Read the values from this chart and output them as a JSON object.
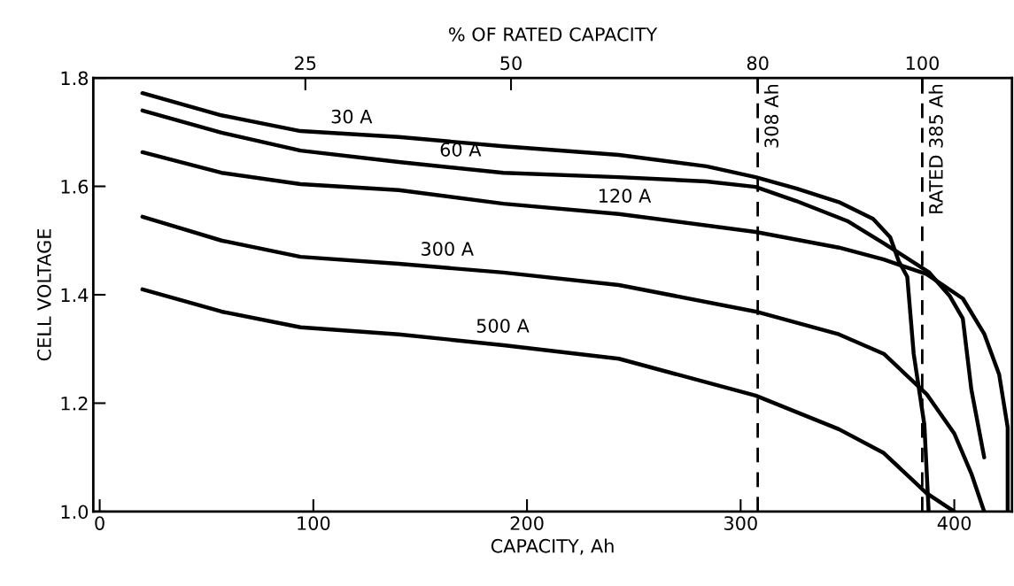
{
  "chart_data": {
    "type": "line",
    "xlabel": "CAPACITY, Ah",
    "ylabel": "CELL VOLTAGE",
    "x2label": "% OF RATED CAPACITY",
    "xlim": [
      -3,
      427
    ],
    "xticks": [
      0,
      100,
      200,
      300,
      400
    ],
    "ylim": [
      1.0,
      1.8
    ],
    "yticks": [
      {
        "value": 1.0,
        "label": "1.0"
      },
      1.2,
      1.4,
      1.6,
      1.8
    ],
    "x2lim": [
      -0.78,
      110.9
    ],
    "x2ticks": [
      25,
      50,
      80,
      100
    ],
    "grid": false,
    "legend": false,
    "marker": "none",
    "line_style": "solid",
    "series": [
      {
        "color": "#000000",
        "x": [
          20,
          57,
          94,
          140,
          189,
          243,
          284,
          307,
          326,
          346,
          362,
          370,
          374,
          378,
          381,
          386,
          388
        ],
        "values": [
          1.772,
          1.731,
          1.702,
          1.691,
          1.674,
          1.658,
          1.637,
          1.617,
          1.596,
          1.571,
          1.54,
          1.506,
          1.462,
          1.433,
          1.291,
          1.16,
          1.0
        ]
      },
      {
        "color": "#000000",
        "x": [
          20,
          57,
          94,
          140,
          189,
          243,
          284,
          307,
          326,
          350,
          367,
          388,
          398,
          404,
          408,
          414
        ],
        "values": [
          1.74,
          1.699,
          1.666,
          1.645,
          1.625,
          1.617,
          1.609,
          1.599,
          1.573,
          1.536,
          1.495,
          1.442,
          1.397,
          1.356,
          1.225,
          1.1
        ]
      },
      {
        "color": "#000000",
        "x": [
          20,
          57,
          94,
          140,
          189,
          243,
          307,
          346,
          367,
          387,
          404,
          414,
          421,
          425,
          425
        ],
        "values": [
          1.663,
          1.625,
          1.604,
          1.593,
          1.568,
          1.549,
          1.516,
          1.487,
          1.465,
          1.438,
          1.393,
          1.328,
          1.253,
          1.155,
          1.0
        ]
      },
      {
        "color": "#000000",
        "x": [
          20,
          57,
          94,
          140,
          189,
          243,
          307,
          346,
          367,
          387,
          400,
          408,
          414
        ],
        "values": [
          1.544,
          1.5,
          1.47,
          1.457,
          1.441,
          1.418,
          1.369,
          1.327,
          1.291,
          1.217,
          1.144,
          1.07,
          1.0
        ]
      },
      {
        "color": "#000000",
        "x": [
          20,
          57,
          94,
          140,
          189,
          243,
          307,
          346,
          367,
          387,
          400
        ],
        "values": [
          1.41,
          1.369,
          1.34,
          1.327,
          1.307,
          1.282,
          1.214,
          1.152,
          1.108,
          1.034,
          1.0
        ]
      }
    ],
    "annotations": [
      {
        "text": "30 A",
        "x": 108,
        "y": 1.698
      },
      {
        "text": "60 A",
        "x": 159,
        "y": 1.637
      },
      {
        "text": "120 A",
        "x": 233,
        "y": 1.552
      },
      {
        "text": "300 A",
        "x": 150,
        "y": 1.454
      },
      {
        "text": "500 A",
        "x": 176,
        "y": 1.312
      }
    ],
    "ref_lines": [
      {
        "axis": "x",
        "value": 308,
        "label": "308 Ah",
        "color": "#000000",
        "line_style": "dashed"
      },
      {
        "axis": "x",
        "value": 385,
        "label": "RATED 385 Ah",
        "color": "#000000",
        "line_style": "dashed"
      }
    ]
  }
}
